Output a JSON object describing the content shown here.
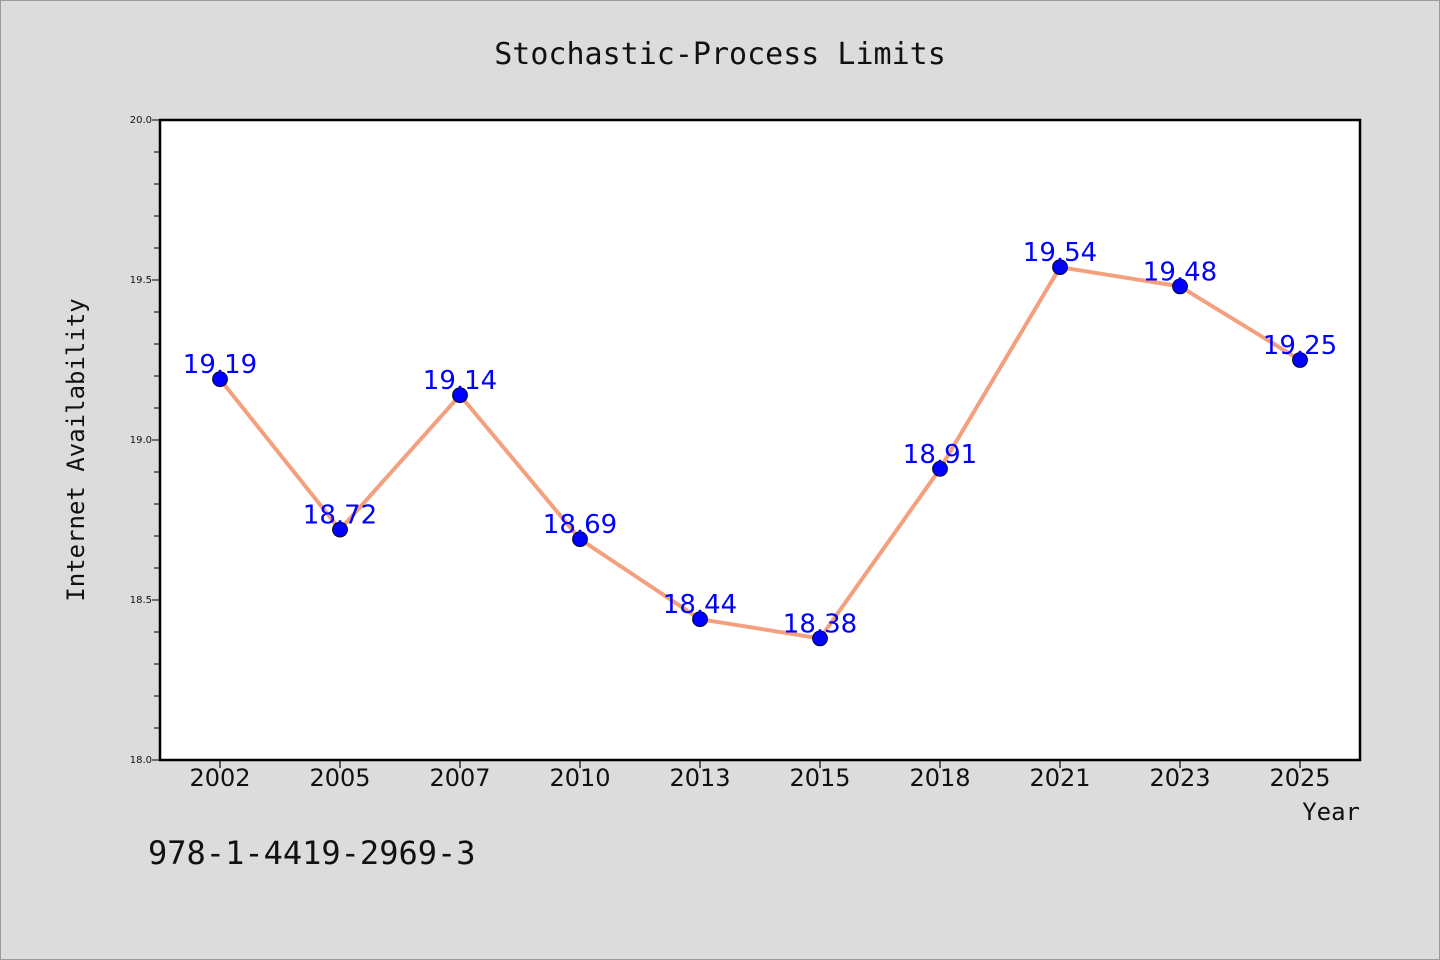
{
  "chart_data": {
    "type": "line",
    "title": "Stochastic-Process Limits",
    "xlabel": "Year",
    "ylabel": "Internet Availability",
    "categories": [
      "2002",
      "2005",
      "2007",
      "2010",
      "2013",
      "2015",
      "2018",
      "2021",
      "2023",
      "2025"
    ],
    "series": [
      {
        "values": [
          19.19,
          18.72,
          19.14,
          18.69,
          18.44,
          18.38,
          18.91,
          19.54,
          19.48,
          19.25
        ],
        "line_color": "#f4a07f",
        "marker_color": "#0000ff",
        "label_color": "#0000ff"
      }
    ],
    "ylim": [
      18.0,
      20.0
    ],
    "yticks": [
      "18.0",
      "18.5",
      "19.0",
      "19.5",
      "20.0"
    ],
    "grid": false,
    "legend": "none"
  },
  "footer": {
    "text": "978-1-4419-2969-3"
  },
  "colors": {
    "background": "#dcdcdc",
    "plot_background": "#ffffff"
  }
}
